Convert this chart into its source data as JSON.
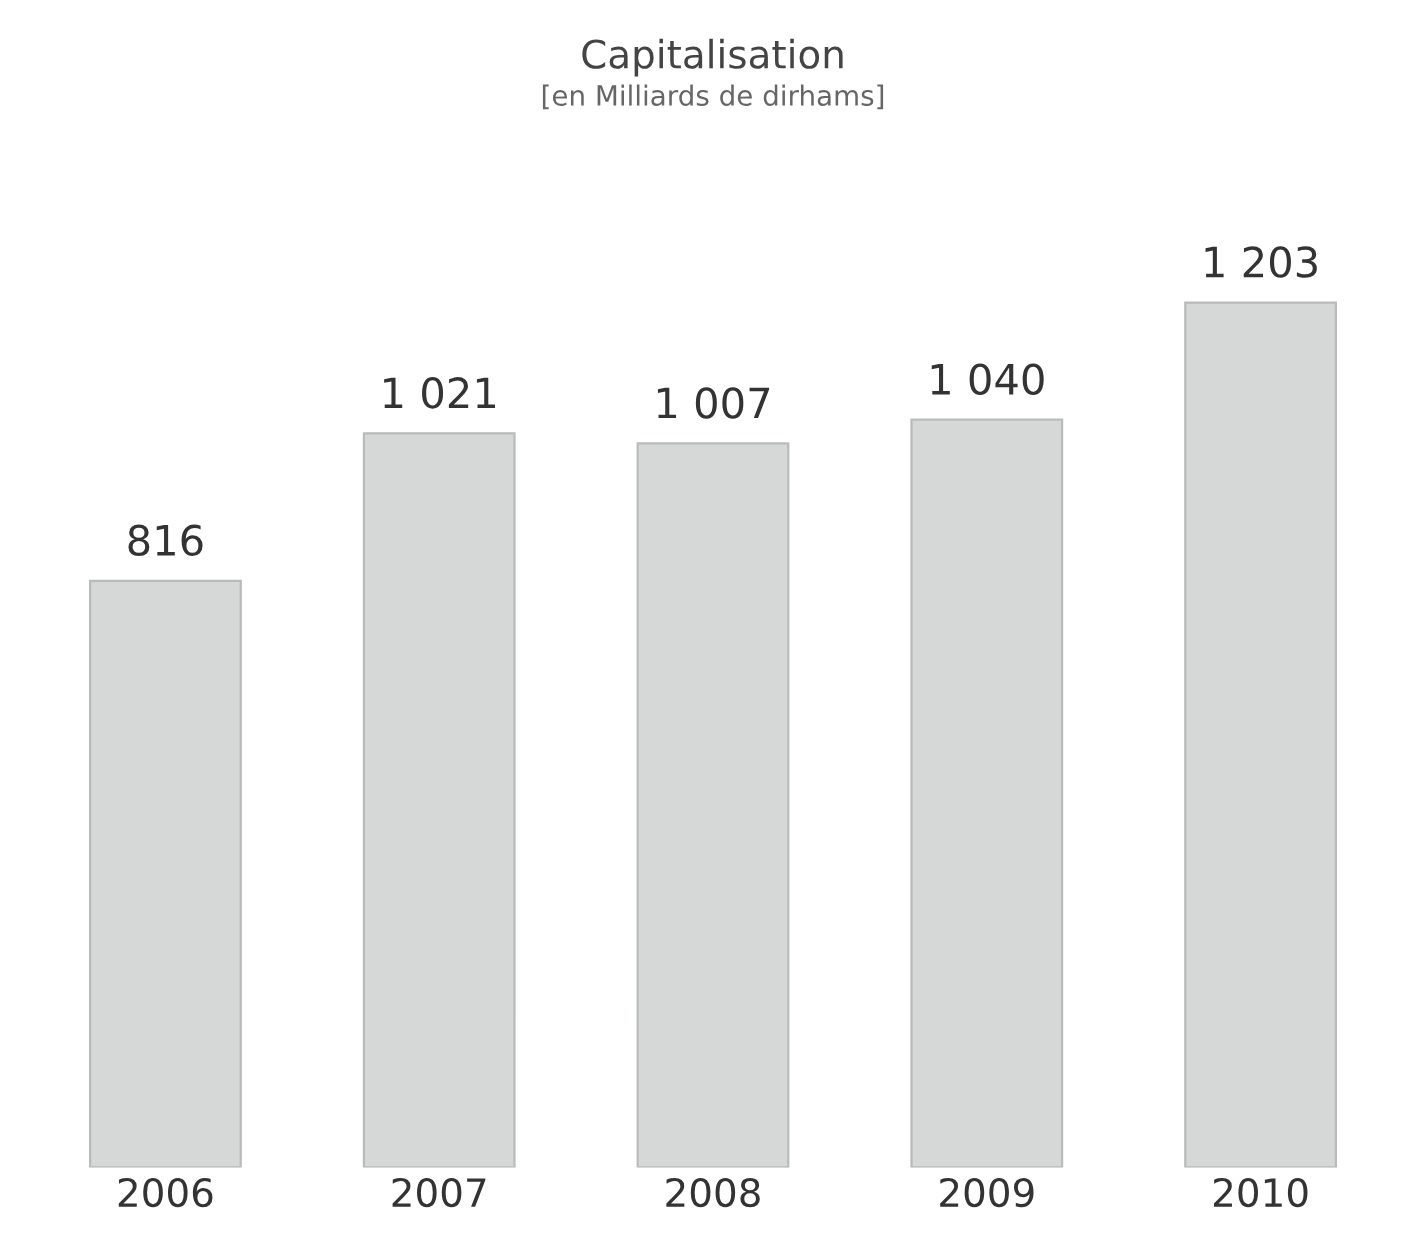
{
  "chart_data": {
    "type": "bar",
    "title": "Capitalisation",
    "subtitle": "[en Milliards de dirhams]",
    "categories": [
      "2006",
      "2007",
      "2008",
      "2009",
      "2010"
    ],
    "values": [
      816,
      1021,
      1007,
      1040,
      1203
    ],
    "value_labels": [
      "816",
      "1 021",
      "1 007",
      "1 040",
      "1 203"
    ],
    "color": "#d6d8d8",
    "grid": false,
    "legend": false
  }
}
